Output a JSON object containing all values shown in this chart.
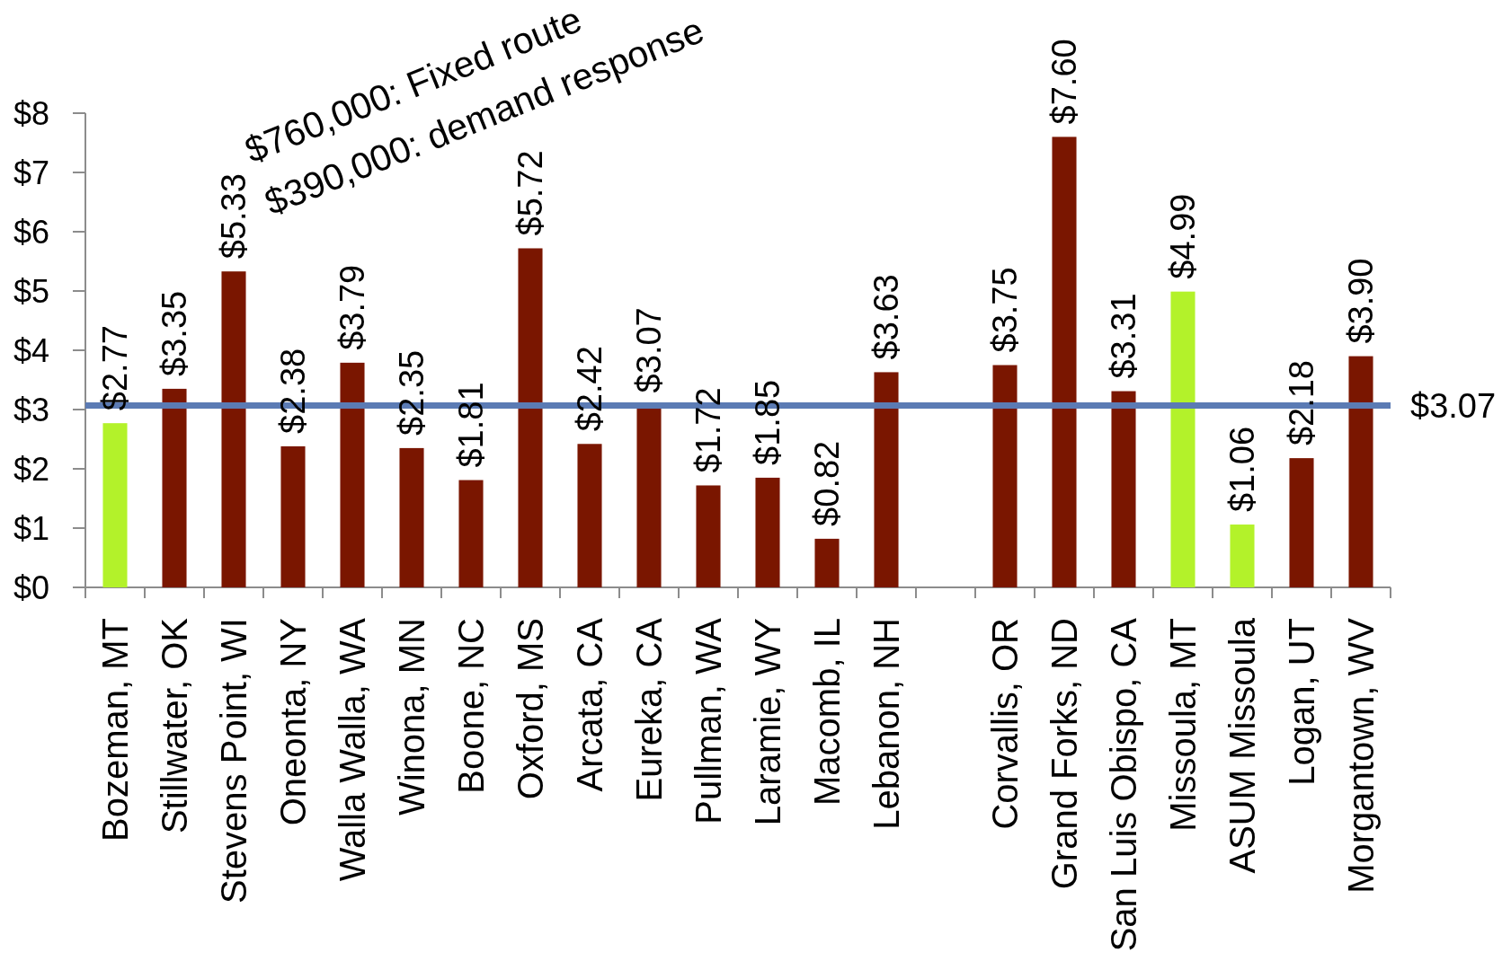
{
  "chart_data": {
    "type": "bar",
    "categories": [
      "Bozeman, MT",
      "Stillwater, OK",
      "Stevens Point, WI",
      "Oneonta, NY",
      "Walla Walla, WA",
      "Winona, MN",
      "Boone, NC",
      "Oxford, MS",
      "Arcata, CA",
      "Eureka, CA",
      "Pullman, WA",
      "Laramie, WY",
      "Macomb, IL",
      "Lebanon, NH",
      null,
      "Corvallis, OR",
      "Grand Forks, ND",
      "San Luis Obispo, CA",
      "Missoula, MT",
      "ASUM Missoula",
      "Logan, UT",
      "Morgantown, WV"
    ],
    "values": [
      2.77,
      3.35,
      5.33,
      2.38,
      3.79,
      2.35,
      1.81,
      5.72,
      2.42,
      3.07,
      1.72,
      1.85,
      0.82,
      3.63,
      null,
      3.75,
      7.6,
      3.31,
      4.99,
      1.06,
      2.18,
      3.9
    ],
    "value_labels": [
      "$2.77",
      "$3.35",
      "$5.33",
      "$2.38",
      "$3.79",
      "$2.35",
      "$1.81",
      "$5.72",
      "$2.42",
      "$3.07",
      "$1.72",
      "$1.85",
      "$0.82",
      "$3.63",
      null,
      "$3.75",
      "$7.60",
      "$3.31",
      "$4.99",
      "$1.06",
      "$2.18",
      "$3.90"
    ],
    "colors": [
      "#b3f22a",
      "#7a1600",
      "#7a1600",
      "#7a1600",
      "#7a1600",
      "#7a1600",
      "#7a1600",
      "#7a1600",
      "#7a1600",
      "#7a1600",
      "#7a1600",
      "#7a1600",
      "#7a1600",
      "#7a1600",
      null,
      "#7a1600",
      "#7a1600",
      "#7a1600",
      "#b3f22a",
      "#b3f22a",
      "#7a1600",
      "#7a1600"
    ],
    "ylim": [
      0,
      8
    ],
    "yticks": [
      {
        "value": 0,
        "label": "$0"
      },
      {
        "value": 1,
        "label": "$1"
      },
      {
        "value": 2,
        "label": "$2"
      },
      {
        "value": 3,
        "label": "$3"
      },
      {
        "value": 4,
        "label": "$4"
      },
      {
        "value": 5,
        "label": "$5"
      },
      {
        "value": 6,
        "label": "$6"
      },
      {
        "value": 7,
        "label": "$7"
      },
      {
        "value": 8,
        "label": "$8"
      }
    ],
    "ref_lines": [
      {
        "axis": "y",
        "value": 3.07,
        "label": "$3.07",
        "color": "#5b7bb4"
      }
    ],
    "annotations": [
      "$760,000: Fixed route",
      "$390,000: demand response"
    ]
  }
}
